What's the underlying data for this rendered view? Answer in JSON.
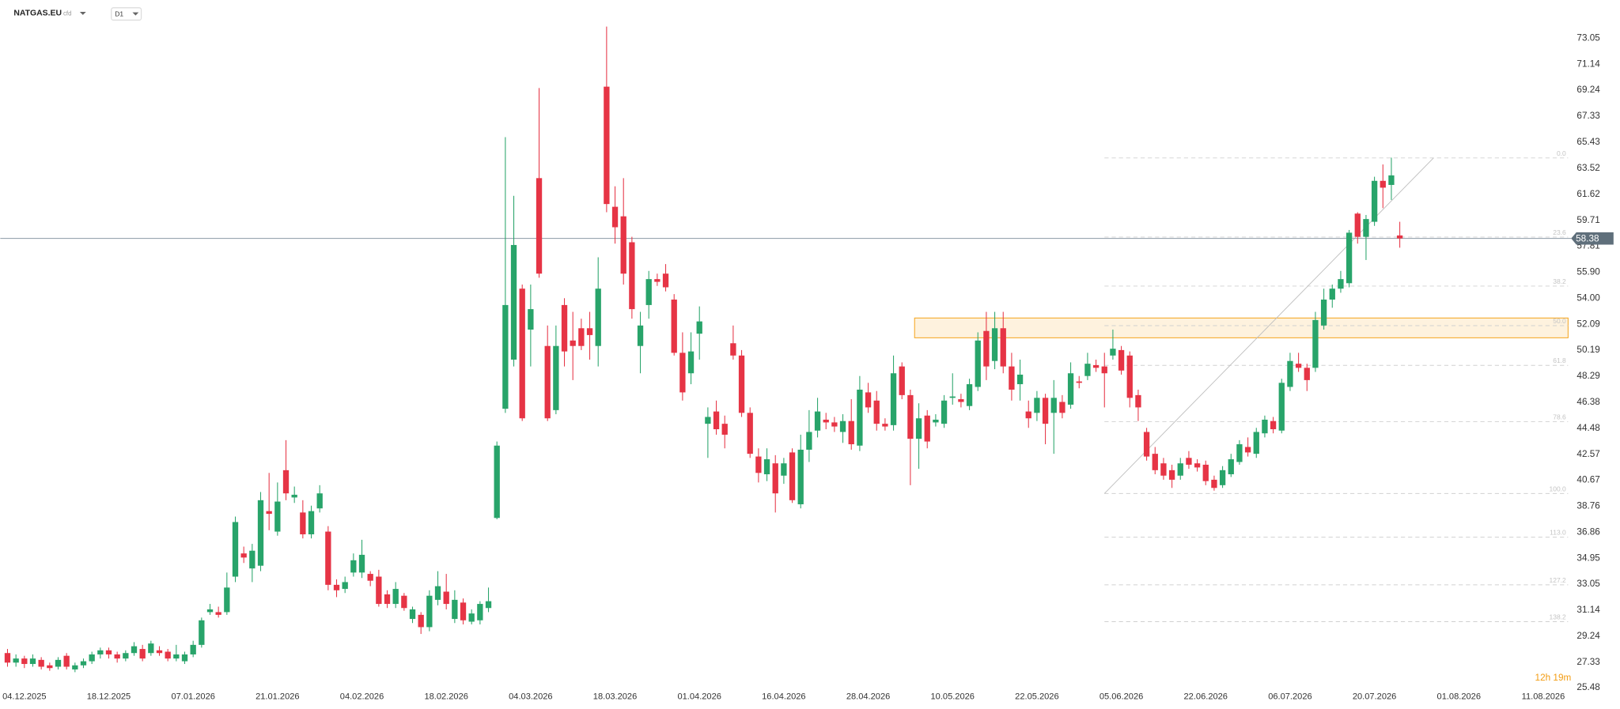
{
  "header": {
    "symbol": "NATGAS.EU",
    "instrument_type": "cfd",
    "timeframe": "D1",
    "countdown": "12h 19m"
  },
  "chart_data": {
    "type": "candlestick",
    "up_color": "#28a46a",
    "down_color": "#e63445",
    "grid": false,
    "ylim": [
      25.3,
      75.85
    ],
    "yticks": [
      73.05,
      71.14,
      69.24,
      67.33,
      65.43,
      63.52,
      61.62,
      59.71,
      57.81,
      {
        "value": 55.9,
        "label": "55.90"
      },
      {
        "value": 54,
        "label": "54.00"
      },
      52.09,
      50.19,
      48.29,
      46.38,
      44.48,
      42.57,
      40.67,
      38.76,
      36.86,
      34.95,
      33.05,
      31.14,
      29.24,
      27.33,
      25.48
    ],
    "categories": [
      null,
      null,
      "04.12.2025",
      null,
      null,
      null,
      null,
      null,
      null,
      null,
      null,
      null,
      "18.12.2025",
      null,
      null,
      null,
      null,
      null,
      null,
      null,
      null,
      null,
      "07.01.2026",
      null,
      null,
      null,
      null,
      null,
      null,
      null,
      null,
      null,
      "21.01.2026",
      null,
      null,
      null,
      null,
      null,
      null,
      null,
      null,
      null,
      "04.02.2026",
      null,
      null,
      null,
      null,
      null,
      null,
      null,
      null,
      null,
      "18.02.2026",
      null,
      null,
      null,
      null,
      null,
      null,
      null,
      null,
      null,
      "04.03.2026",
      null,
      null,
      null,
      null,
      null,
      null,
      null,
      null,
      null,
      "18.03.2026",
      null,
      null,
      null,
      null,
      null,
      null,
      null,
      null,
      null,
      "01.04.2026",
      null,
      null,
      null,
      null,
      null,
      null,
      null,
      null,
      null,
      "16.04.2026",
      null,
      null,
      null,
      null,
      null,
      null,
      null,
      null,
      null,
      "28.04.2026",
      null,
      null,
      null,
      null,
      null,
      null,
      null,
      null,
      null,
      "10.05.2026",
      null,
      null,
      null,
      null,
      null,
      null,
      null,
      null,
      null,
      "22.05.2026",
      null,
      null,
      null,
      null,
      null,
      null,
      null,
      null,
      null,
      "05.06.2026",
      null,
      null,
      null,
      null,
      null,
      null,
      null,
      null,
      null,
      "22.06.2026",
      null,
      null,
      null,
      null,
      null,
      null,
      null,
      null,
      null,
      "06.07.2026",
      null,
      null,
      null,
      null,
      null,
      null,
      null,
      null,
      null,
      "20.07.2026",
      null,
      null,
      null,
      null,
      null,
      null,
      null,
      null,
      null,
      "01.08.2026",
      null,
      null,
      null,
      null,
      null,
      null,
      null,
      null,
      null,
      "11.08.2026"
    ],
    "open": [
      28.0,
      27.3,
      27.6,
      27.2,
      27.5,
      27.1,
      27.0,
      27.8,
      26.8,
      27.1,
      27.4,
      27.9,
      28.2,
      27.9,
      27.6,
      28.0,
      28.3,
      28.0,
      28.2,
      28.1,
      27.6,
      27.4,
      27.9,
      28.6,
      31.0,
      31.0,
      31.0,
      33.6,
      35.3,
      34.2,
      34.4,
      38.4,
      36.9,
      41.4,
      39.4,
      38.3,
      36.7,
      38.6,
      36.9,
      33.0,
      32.7,
      33.9,
      33.9,
      33.8,
      33.6,
      32.3,
      31.6,
      32.2,
      30.5,
      30.8,
      29.9,
      31.9,
      32.5,
      30.5,
      31.7,
      30.3,
      30.4,
      31.3,
      37.9,
      45.9,
      49.5,
      54.7,
      51.7,
      62.8,
      50.5,
      45.8,
      53.5,
      50.9,
      51.8,
      51.8,
      50.5,
      69.5,
      60.7,
      60.0,
      58.1,
      50.5,
      53.5,
      55.4,
      55.8,
      53.9,
      50.0,
      48.5,
      51.4,
      44.8,
      45.7,
      44.8,
      50.7,
      49.8,
      45.6,
      42.4,
      41.1,
      41.9,
      41.0,
      42.7,
      38.9,
      42.9,
      44.3,
      45.1,
      44.9,
      44.2,
      45.0,
      43.2,
      47.1,
      46.5,
      44.8,
      44.7,
      49.0,
      46.9,
      43.7,
      45.4,
      44.9,
      44.8,
      46.7,
      46.6,
      46.1,
      47.5,
      51.6,
      49.4,
      51.8,
      49.0,
      47.7,
      45.7,
      45.6,
      46.7,
      45.6,
      46.4,
      46.2,
      47.9,
      48.3,
      49.1,
      49.0,
      49.8,
      50.2,
      49.8,
      46.9,
      44.2,
      42.6,
      41.9,
      41.4,
      41.0,
      42.3,
      41.9,
      41.8,
      40.7,
      40.3,
      41.1,
      42.0,
      43.1,
      42.6,
      44.1,
      45.0,
      44.3,
      47.5,
      49.2,
      48.9,
      48.9,
      52.0,
      53.9,
      54.7,
      55.1,
      60.2,
      58.5,
      59.6,
      62.6,
      62.3,
      58.6,
      null,
      null,
      null,
      null,
      null,
      null,
      null,
      null,
      null,
      null,
      null,
      null,
      null,
      null,
      null,
      null,
      null
    ],
    "high": [
      28.3,
      27.9,
      27.8,
      27.9,
      27.7,
      27.3,
      27.7,
      28.0,
      27.3,
      27.6,
      28.1,
      28.4,
      28.4,
      28.1,
      28.2,
      28.8,
      28.6,
      28.9,
      28.5,
      28.3,
      28.6,
      28.1,
      28.9,
      30.6,
      31.6,
      31.4,
      33.9,
      38.0,
      35.8,
      36.0,
      39.8,
      41.2,
      40.5,
      43.6,
      40.2,
      39.2,
      38.8,
      40.3,
      37.3,
      33.4,
      33.6,
      35.3,
      36.3,
      34.0,
      34.1,
      32.6,
      33.2,
      32.4,
      31.4,
      31.0,
      32.6,
      34.0,
      33.8,
      32.6,
      32.0,
      31.2,
      31.8,
      32.8,
      43.5,
      65.8,
      61.5,
      55.0,
      55.0,
      69.4,
      52.0,
      52.0,
      54.0,
      53.0,
      52.5,
      53.0,
      57.0,
      73.9,
      62.2,
      62.8,
      58.5,
      53.0,
      56.0,
      55.8,
      56.5,
      54.3,
      51.5,
      51.5,
      53.4,
      46.0,
      46.5,
      45.4,
      52.0,
      50.2,
      46.0,
      43.0,
      43.0,
      42.5,
      42.3,
      43.0,
      44.0,
      45.8,
      46.7,
      45.6,
      45.3,
      45.5,
      46.6,
      48.3,
      47.8,
      47.2,
      45.2,
      49.8,
      49.3,
      47.3,
      46.3,
      45.8,
      45.5,
      46.9,
      48.5,
      47.0,
      48.1,
      51.5,
      53.0,
      53.0,
      53.0,
      50.0,
      49.5,
      46.5,
      47.2,
      47.0,
      48.0,
      46.9,
      49.3,
      48.3,
      50.0,
      49.5,
      50.0,
      51.7,
      50.5,
      50.1,
      47.3,
      44.5,
      43.1,
      42.3,
      41.8,
      42.3,
      42.8,
      42.2,
      42.1,
      41.0,
      41.7,
      42.6,
      43.6,
      43.8,
      44.5,
      45.4,
      45.3,
      48.1,
      50.0,
      50.0,
      49.2,
      53.0,
      54.7,
      55.0,
      56.0,
      59.0,
      60.3,
      60.1,
      62.9,
      63.8,
      64.3,
      59.6,
      null,
      null,
      null,
      null,
      null,
      null,
      null,
      null,
      null,
      null,
      null,
      null,
      null,
      null,
      null,
      null,
      null
    ],
    "low": [
      27.0,
      27.0,
      26.9,
      27.0,
      26.8,
      26.7,
      26.8,
      26.8,
      26.6,
      26.9,
      27.2,
      27.6,
      27.6,
      27.3,
      27.4,
      27.8,
      27.4,
      27.8,
      27.8,
      27.4,
      27.4,
      27.2,
      27.7,
      28.4,
      30.8,
      30.6,
      30.8,
      33.2,
      34.6,
      33.2,
      34.0,
      37.0,
      36.6,
      39.2,
      39.0,
      36.4,
      36.4,
      38.3,
      32.6,
      32.1,
      32.4,
      33.6,
      33.5,
      32.9,
      31.4,
      31.3,
      31.3,
      31.1,
      30.2,
      29.4,
      29.6,
      31.5,
      31.2,
      30.2,
      30.1,
      30.1,
      30.1,
      31.0,
      37.8,
      45.6,
      49.0,
      45.0,
      49.0,
      55.5,
      45.0,
      45.5,
      49.0,
      48.0,
      50.2,
      49.5,
      49.0,
      60.3,
      58.0,
      55.0,
      52.5,
      48.5,
      52.5,
      54.9,
      54.5,
      49.8,
      46.5,
      47.7,
      49.5,
      42.3,
      44.0,
      43.0,
      49.5,
      45.3,
      42.3,
      40.5,
      40.6,
      38.3,
      40.4,
      39.0,
      38.6,
      42.0,
      43.8,
      44.4,
      44.2,
      43.4,
      42.9,
      42.8,
      45.6,
      44.3,
      44.3,
      44.3,
      46.6,
      40.3,
      41.5,
      43.0,
      44.6,
      44.5,
      46.2,
      46.0,
      45.8,
      47.2,
      48.0,
      48.8,
      48.5,
      46.5,
      46.5,
      44.5,
      45.0,
      43.3,
      42.6,
      45.2,
      45.9,
      47.4,
      48.0,
      48.6,
      46.0,
      49.5,
      48.4,
      46.0,
      45.0,
      42.1,
      41.1,
      40.7,
      40.1,
      40.7,
      41.5,
      41.3,
      40.3,
      39.9,
      40.1,
      40.9,
      41.8,
      42.4,
      42.3,
      43.8,
      44.1,
      44.1,
      47.2,
      48.6,
      47.2,
      48.6,
      51.7,
      53.3,
      54.4,
      54.8,
      58.0,
      56.8,
      59.3,
      60.6,
      61.2,
      57.7,
      null,
      null,
      null,
      null,
      null,
      null,
      null,
      null,
      null,
      null,
      null,
      null,
      null,
      null,
      null,
      null,
      null
    ],
    "close": [
      27.3,
      27.6,
      27.2,
      27.6,
      27.0,
      26.9,
      27.5,
      27.0,
      27.1,
      27.4,
      27.9,
      28.2,
      27.9,
      27.6,
      28.0,
      28.5,
      27.6,
      28.7,
      28.0,
      27.6,
      27.9,
      27.9,
      28.6,
      30.4,
      31.2,
      30.8,
      32.8,
      37.6,
      35.0,
      35.5,
      39.2,
      38.2,
      39.1,
      39.7,
      39.6,
      36.7,
      38.4,
      39.7,
      33.0,
      32.6,
      33.2,
      34.8,
      35.2,
      33.3,
      31.6,
      31.6,
      32.7,
      31.3,
      31.2,
      29.9,
      32.2,
      32.9,
      31.6,
      31.9,
      30.4,
      30.9,
      31.6,
      31.8,
      43.2,
      53.5,
      57.9,
      45.2,
      53.2,
      55.8,
      45.2,
      50.5,
      50.1,
      50.5,
      50.5,
      51.3,
      54.7,
      60.9,
      59.2,
      55.8,
      53.2,
      52.0,
      55.4,
      55.2,
      54.8,
      50.0,
      47.1,
      50.1,
      52.3,
      45.3,
      44.4,
      44.0,
      49.8,
      45.6,
      42.6,
      41.2,
      42.2,
      39.7,
      41.9,
      39.2,
      42.9,
      44.2,
      45.7,
      44.9,
      44.6,
      45.0,
      43.3,
      47.3,
      46.0,
      44.8,
      44.6,
      48.5,
      46.9,
      43.7,
      45.2,
      43.5,
      45.1,
      46.5,
      46.8,
      46.4,
      47.7,
      50.9,
      49.0,
      51.8,
      49.0,
      47.3,
      48.4,
      45.2,
      46.7,
      44.8,
      46.7,
      45.6,
      48.5,
      47.8,
      49.2,
      48.9,
      48.5,
      50.3,
      48.7,
      46.7,
      46.0,
      42.4,
      41.4,
      41.0,
      40.7,
      41.9,
      41.8,
      41.6,
      40.6,
      40.1,
      41.4,
      42.2,
      43.3,
      42.7,
      44.2,
      45.1,
      44.4,
      47.8,
      49.4,
      48.9,
      48.0,
      52.4,
      53.9,
      54.7,
      55.4,
      58.8,
      58.5,
      59.8,
      62.6,
      62.1,
      63.0,
      58.38,
      null,
      null,
      null,
      null,
      null,
      null,
      null,
      null,
      null,
      null,
      null,
      null,
      null,
      null,
      null,
      null,
      null
    ],
    "last_price": 58.38,
    "zone": {
      "from": 108,
      "low": 51.1,
      "high": 52.55,
      "color": "#f5a623"
    },
    "trend": {
      "x": [
        130,
        169
      ],
      "y": [
        39.69,
        64.28
      ]
    },
    "fib": {
      "from": 130,
      "levels": [
        {
          "label": "0.0",
          "price": 64.28
        },
        {
          "label": "23.6",
          "price": 58.48
        },
        {
          "label": "38.2",
          "price": 54.89
        },
        {
          "label": "50.0",
          "price": 51.99
        },
        {
          "label": "61.8",
          "price": 49.08
        },
        {
          "label": "78.6",
          "price": 44.95
        },
        {
          "label": "100.0",
          "price": 39.69
        },
        {
          "label": "113.0",
          "price": 36.49
        },
        {
          "label": "127.2",
          "price": 33.0
        },
        {
          "label": "138.2",
          "price": 30.3
        }
      ]
    }
  }
}
